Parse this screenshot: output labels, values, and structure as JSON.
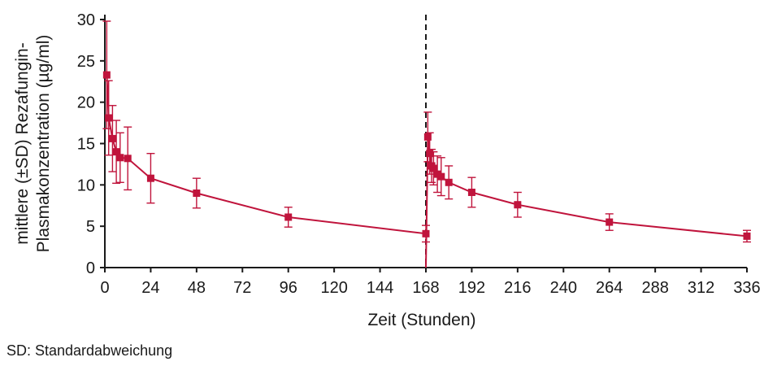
{
  "chart_data": {
    "type": "line",
    "title": "",
    "xlabel": "Zeit (Stunden)",
    "ylabel_lines": [
      "mittlere (±SD) Rezafungin-",
      "Plasmakonzentration (µg/ml)"
    ],
    "xlim": [
      0,
      336
    ],
    "ylim": [
      0,
      30
    ],
    "x_ticks": [
      0,
      24,
      48,
      72,
      96,
      120,
      144,
      168,
      192,
      216,
      240,
      264,
      288,
      312,
      336
    ],
    "y_ticks": [
      0,
      5,
      10,
      15,
      20,
      25,
      30
    ],
    "grid": false,
    "legend": "none",
    "series_color": "#c0143c",
    "vertical_marker": {
      "x": 168,
      "style": "dashed",
      "color": "#1a1a1a"
    },
    "segments": [
      {
        "points": [
          {
            "x": 1,
            "y": 23.3,
            "sd": 6.5
          },
          {
            "x": 2,
            "y": 18.1,
            "sd": 4.5
          },
          {
            "x": 4,
            "y": 15.6,
            "sd": 4.0
          },
          {
            "x": 6,
            "y": 14.0,
            "sd": 3.8
          },
          {
            "x": 8,
            "y": 13.3,
            "sd": 3.0
          },
          {
            "x": 12,
            "y": 13.2,
            "sd": 3.8
          },
          {
            "x": 24,
            "y": 10.8,
            "sd": 3.0
          },
          {
            "x": 48,
            "y": 9.0,
            "sd": 1.8
          },
          {
            "x": 96,
            "y": 6.1,
            "sd": 1.2
          },
          {
            "x": 168,
            "y": 4.1,
            "sd": 1.0
          }
        ]
      },
      {
        "points": [
          {
            "x": 168,
            "y": 0.0,
            "sd": 0
          },
          {
            "x": 169,
            "y": 15.8,
            "sd": 3.0
          },
          {
            "x": 170,
            "y": 13.8,
            "sd": 2.5
          },
          {
            "x": 171,
            "y": 12.3,
            "sd": 2.0
          },
          {
            "x": 172,
            "y": 12.0,
            "sd": 2.0
          },
          {
            "x": 174,
            "y": 11.3,
            "sd": 2.2
          },
          {
            "x": 176,
            "y": 11.0,
            "sd": 2.3
          },
          {
            "x": 180,
            "y": 10.3,
            "sd": 2.0
          },
          {
            "x": 192,
            "y": 9.1,
            "sd": 1.8
          },
          {
            "x": 216,
            "y": 7.6,
            "sd": 1.5
          },
          {
            "x": 264,
            "y": 5.5,
            "sd": 1.0
          },
          {
            "x": 336,
            "y": 3.8,
            "sd": 0.7
          }
        ]
      }
    ]
  },
  "footnote": "SD: Standardabweichung"
}
